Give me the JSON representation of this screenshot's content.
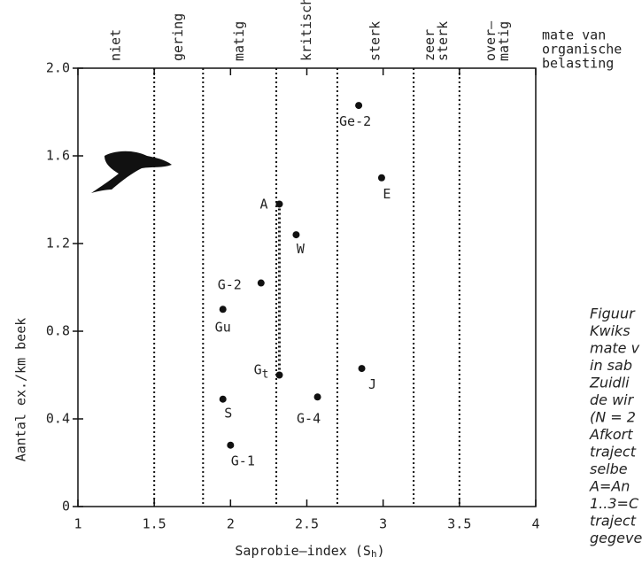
{
  "chart_data": {
    "type": "scatter",
    "xlabel": "Saprobie–index (S",
    "xlabel_sub": "h",
    "xlabel_end": ")",
    "ylabel": "Aantal ex./km beek",
    "xlim": [
      1,
      4
    ],
    "xticks": [
      1,
      1.5,
      2,
      2.5,
      3,
      3.5,
      4
    ],
    "ylim": [
      0,
      2
    ],
    "yticks": [
      0,
      0.4,
      0.8,
      1.2,
      1.6,
      {
        "value": 2,
        "label": "2.0"
      }
    ],
    "zone_bounds": [
      1.5,
      1.82,
      2.3,
      2.7,
      3.2,
      3.5
    ],
    "zones": [
      [
        "niet"
      ],
      [
        "gering"
      ],
      [
        "matig"
      ],
      [
        "kritisch"
      ],
      [
        "sterk"
      ],
      [
        "zeer",
        "sterk"
      ],
      [
        "over–",
        "matig"
      ]
    ],
    "zone_title": [
      "mate van",
      "organische",
      "belasting"
    ],
    "color": "#111",
    "points": [
      {
        "label": "Ge-2",
        "x": 2.84,
        "y": 1.83
      },
      {
        "label": "E",
        "x": 2.99,
        "y": 1.5
      },
      {
        "label": "A",
        "x": 2.32,
        "y": 1.38
      },
      {
        "label": "W",
        "x": 2.43,
        "y": 1.24
      },
      {
        "label": "G-2",
        "x": 2.2,
        "y": 1.02
      },
      {
        "label": "Gu",
        "x": 1.95,
        "y": 0.9
      },
      {
        "label": "G",
        "label_sub": "t",
        "x": 2.32,
        "y": 0.6
      },
      {
        "label": "J",
        "x": 2.86,
        "y": 0.63
      },
      {
        "label": "G-4",
        "x": 2.57,
        "y": 0.5
      },
      {
        "label": "S",
        "x": 1.95,
        "y": 0.49
      },
      {
        "label": "G-1",
        "x": 2.0,
        "y": 0.28
      }
    ],
    "caption": [
      "Figuur",
      "Kwiks",
      "mate v",
      "in sab",
      "Zuidli",
      "de wir",
      "(N = 2",
      "Afkort",
      "traject",
      "selbe",
      "A=An",
      "1..3=C",
      "traject",
      "gegeve"
    ]
  }
}
